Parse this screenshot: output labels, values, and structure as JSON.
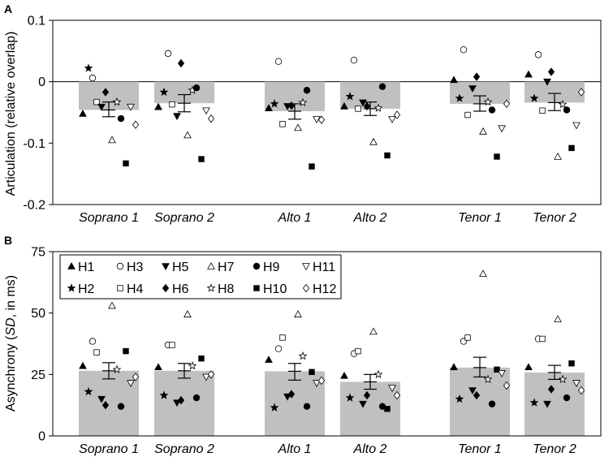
{
  "chart_data": [
    {
      "type": "bar",
      "panel_label": "A",
      "ylabel": "Articulation (relative overlap)",
      "ylim": [
        -0.2,
        0.1
      ],
      "yticks": [
        0.1,
        0,
        -0.1,
        -0.2
      ],
      "ytick_labels": [
        "0.1",
        "0",
        "-0.1",
        "-0.2"
      ],
      "zero_line": true,
      "categories": [
        "Soprano 1",
        "Soprano 2",
        "Alto 1",
        "Alto 2",
        "Tenor 1",
        "Tenor 2"
      ],
      "means": [
        -0.046,
        -0.035,
        -0.048,
        -0.044,
        -0.036,
        -0.034
      ],
      "error_low": [
        -0.057,
        -0.049,
        -0.061,
        -0.055,
        -0.048,
        -0.047
      ],
      "error_high": [
        -0.033,
        -0.021,
        -0.036,
        -0.033,
        -0.023,
        -0.019
      ],
      "singers": [
        "H1",
        "H2",
        "H3",
        "H4",
        "H5",
        "H6",
        "H7",
        "H8",
        "H9",
        "H10",
        "H11",
        "H12"
      ],
      "values": {
        "H1": [
          -0.052,
          -0.041,
          -0.043,
          -0.04,
          0.003,
          0.012
        ],
        "H2": [
          0.022,
          -0.017,
          -0.036,
          -0.024,
          -0.027,
          -0.027
        ],
        "H3": [
          0.006,
          0.046,
          0.033,
          0.035,
          0.052,
          0.044
        ],
        "H4": [
          -0.033,
          -0.037,
          -0.069,
          -0.044,
          -0.054,
          -0.047
        ],
        "H5": [
          -0.041,
          -0.056,
          -0.04,
          -0.034,
          -0.011,
          0.0
        ],
        "H6": [
          -0.017,
          0.03,
          -0.039,
          -0.04,
          0.008,
          0.016
        ],
        "H7": [
          -0.095,
          -0.087,
          -0.075,
          -0.098,
          -0.081,
          -0.122
        ],
        "H8": [
          -0.033,
          -0.014,
          -0.034,
          -0.043,
          -0.033,
          -0.037
        ],
        "H9": [
          -0.06,
          -0.01,
          -0.014,
          -0.008,
          -0.046,
          -0.046
        ],
        "H10": [
          -0.133,
          -0.126,
          -0.138,
          -0.12,
          -0.122,
          -0.108
        ],
        "H11": [
          -0.041,
          -0.047,
          -0.061,
          -0.061,
          -0.076,
          -0.071
        ],
        "H12": [
          -0.07,
          -0.06,
          -0.062,
          -0.054,
          -0.036,
          -0.017
        ]
      }
    },
    {
      "type": "bar",
      "panel_label": "B",
      "ylabel_prefix": "Asynchrony (",
      "ylabel_italic": "SD",
      "ylabel_suffix": ", in ms)",
      "ylim": [
        0,
        75
      ],
      "yticks": [
        0,
        25,
        50,
        75
      ],
      "ytick_labels": [
        "0",
        "25",
        "50",
        "75"
      ],
      "categories": [
        "Soprano 1",
        "Soprano 2",
        "Alto 1",
        "Alto 2",
        "Tenor 1",
        "Tenor 2"
      ],
      "means": [
        26.5,
        26.5,
        26.3,
        22.0,
        27.8,
        25.8
      ],
      "error_low": [
        23.2,
        23.5,
        22.7,
        19.0,
        24.0,
        23.0
      ],
      "error_high": [
        29.8,
        29.5,
        29.5,
        25.0,
        32.0,
        28.7
      ],
      "singers": [
        "H1",
        "H2",
        "H3",
        "H4",
        "H5",
        "H6",
        "H7",
        "H8",
        "H9",
        "H10",
        "H11",
        "H12"
      ],
      "values": {
        "H1": [
          28.5,
          28.0,
          31.0,
          24.5,
          28.0,
          28.0
        ],
        "H2": [
          18.0,
          16.5,
          11.5,
          15.5,
          15.0,
          13.5
        ],
        "H3": [
          38.5,
          37.0,
          35.5,
          33.5,
          38.5,
          39.5
        ],
        "H4": [
          34.0,
          37.0,
          40.0,
          34.5,
          40.0,
          39.5
        ],
        "H5": [
          15.0,
          13.5,
          16.0,
          13.0,
          18.5,
          13.0
        ],
        "H6": [
          12.5,
          14.5,
          17.0,
          16.5,
          16.5,
          19.0
        ],
        "H7": [
          53.0,
          49.5,
          49.5,
          42.5,
          66.0,
          47.5
        ],
        "H8": [
          27.0,
          28.5,
          32.5,
          25.0,
          23.0,
          23.0
        ],
        "H9": [
          12.0,
          15.5,
          12.0,
          12.0,
          13.0,
          15.5
        ],
        "H10": [
          34.5,
          31.5,
          26.0,
          11.0,
          27.0,
          29.5
        ],
        "H11": [
          21.5,
          24.0,
          21.5,
          19.5,
          25.5,
          21.5
        ],
        "H12": [
          24.0,
          25.0,
          22.5,
          16.5,
          20.5,
          18.5
        ]
      }
    }
  ],
  "legend": {
    "items": [
      {
        "label": "H1",
        "symbol": "triangle-up-filled"
      },
      {
        "label": "H3",
        "symbol": "circle-open"
      },
      {
        "label": "H5",
        "symbol": "triangle-down-filled"
      },
      {
        "label": "H7",
        "symbol": "triangle-up-open"
      },
      {
        "label": "H9",
        "symbol": "circle-filled"
      },
      {
        "label": "H11",
        "symbol": "triangle-down-open"
      },
      {
        "label": "H2",
        "symbol": "star-filled"
      },
      {
        "label": "H4",
        "symbol": "square-open"
      },
      {
        "label": "H6",
        "symbol": "diamond-filled"
      },
      {
        "label": "H8",
        "symbol": "star-open"
      },
      {
        "label": "H10",
        "symbol": "square-filled"
      },
      {
        "label": "H12",
        "symbol": "diamond-open"
      }
    ]
  },
  "colors": {
    "bar": "#c0c0c0",
    "marker": "#000000",
    "frame": "#000000"
  }
}
